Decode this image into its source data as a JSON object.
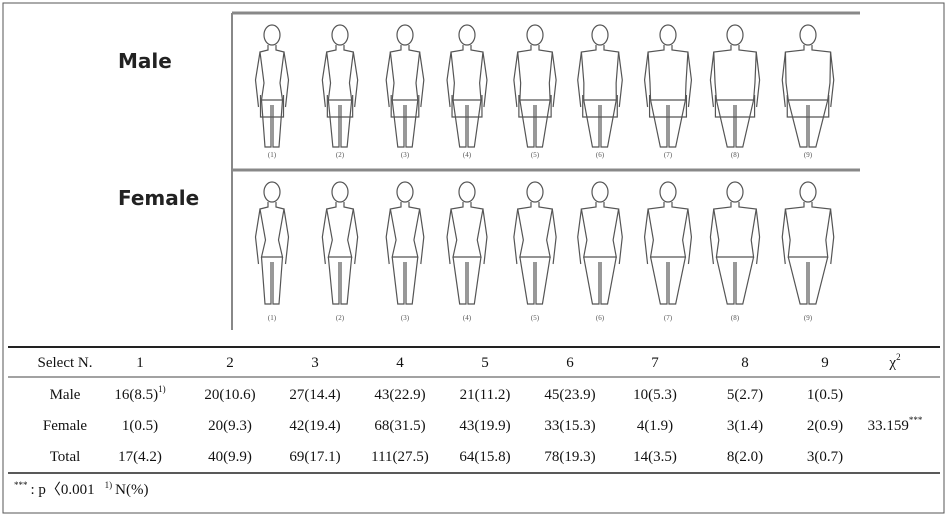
{
  "figures": {
    "male": {
      "label": "Male",
      "numbers": [
        "(1)",
        "(2)",
        "(3)",
        "(4)",
        "(5)",
        "(6)",
        "(7)",
        "(8)",
        "(9)"
      ]
    },
    "female": {
      "label": "Female",
      "numbers": [
        "(1)",
        "(2)",
        "(3)",
        "(4)",
        "(5)",
        "(6)",
        "(7)",
        "(8)",
        "(9)"
      ]
    }
  },
  "table": {
    "header": [
      "Select  N.",
      "1",
      "2",
      "3",
      "4",
      "5",
      "6",
      "7",
      "8",
      "9",
      {
        "text": "χ",
        "sup": "2"
      }
    ],
    "rows": [
      [
        "Male",
        {
          "text": "16(8.5)",
          "sup": "1)"
        },
        "20(10.6)",
        "27(14.4)",
        "43(22.9)",
        "21(11.2)",
        "45(23.9)",
        "10(5.3)",
        "5(2.7)",
        "1(0.5)"
      ],
      [
        "Female",
        "1(0.5)",
        "20(9.3)",
        "42(19.4)",
        "68(31.5)",
        "43(19.9)",
        "33(15.3)",
        "4(1.9)",
        "3(1.4)",
        "2(0.9)",
        {
          "text": "33.159",
          "sup": "***"
        }
      ],
      [
        "Total",
        "17(4.2)",
        "40(9.9)",
        "69(17.1)",
        "111(27.5)",
        "64(15.8)",
        "78(19.3)",
        "14(3.5)",
        "8(2.0)",
        "3(0.7)"
      ]
    ],
    "footnote": [
      {
        "sup": "***",
        "text": ":  p〈0.001"
      },
      {
        "sup": "1)",
        "text": "N(%)"
      }
    ]
  }
}
